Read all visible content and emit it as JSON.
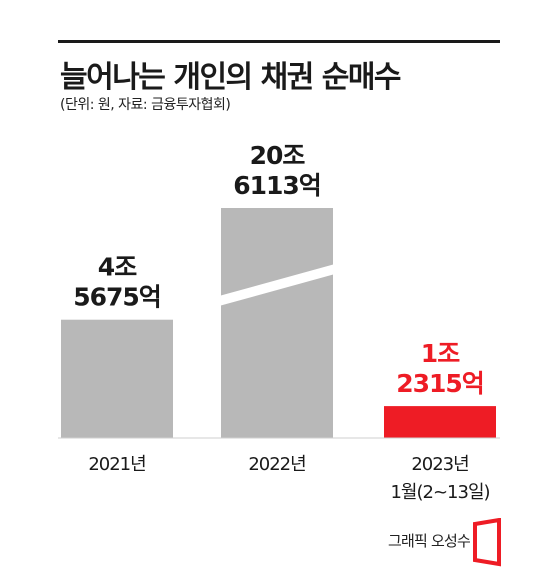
{
  "title": "늘어나는 개인의 채권 순매수",
  "subtitle": "(단위: 원, 자료: 금융투자협회)",
  "credit": "그래픽 오성수",
  "colors": {
    "bar": "#b8b8b8",
    "highlight": "#ee1c25",
    "text": "#1a1a1a"
  },
  "chart_data": {
    "type": "bar",
    "categories": [
      [
        "2021년"
      ],
      [
        "2022년"
      ],
      [
        "2023년",
        "1월(2~13일)"
      ]
    ],
    "values_in_eok": [
      45675,
      206113,
      12315
    ],
    "value_labels": [
      [
        "4조",
        "5675억"
      ],
      [
        "20조",
        "6113억"
      ],
      [
        "1조",
        "2315억"
      ]
    ],
    "highlight_index": 2,
    "axis_break": "second bar (broken)",
    "grid": false,
    "legend": "none"
  }
}
